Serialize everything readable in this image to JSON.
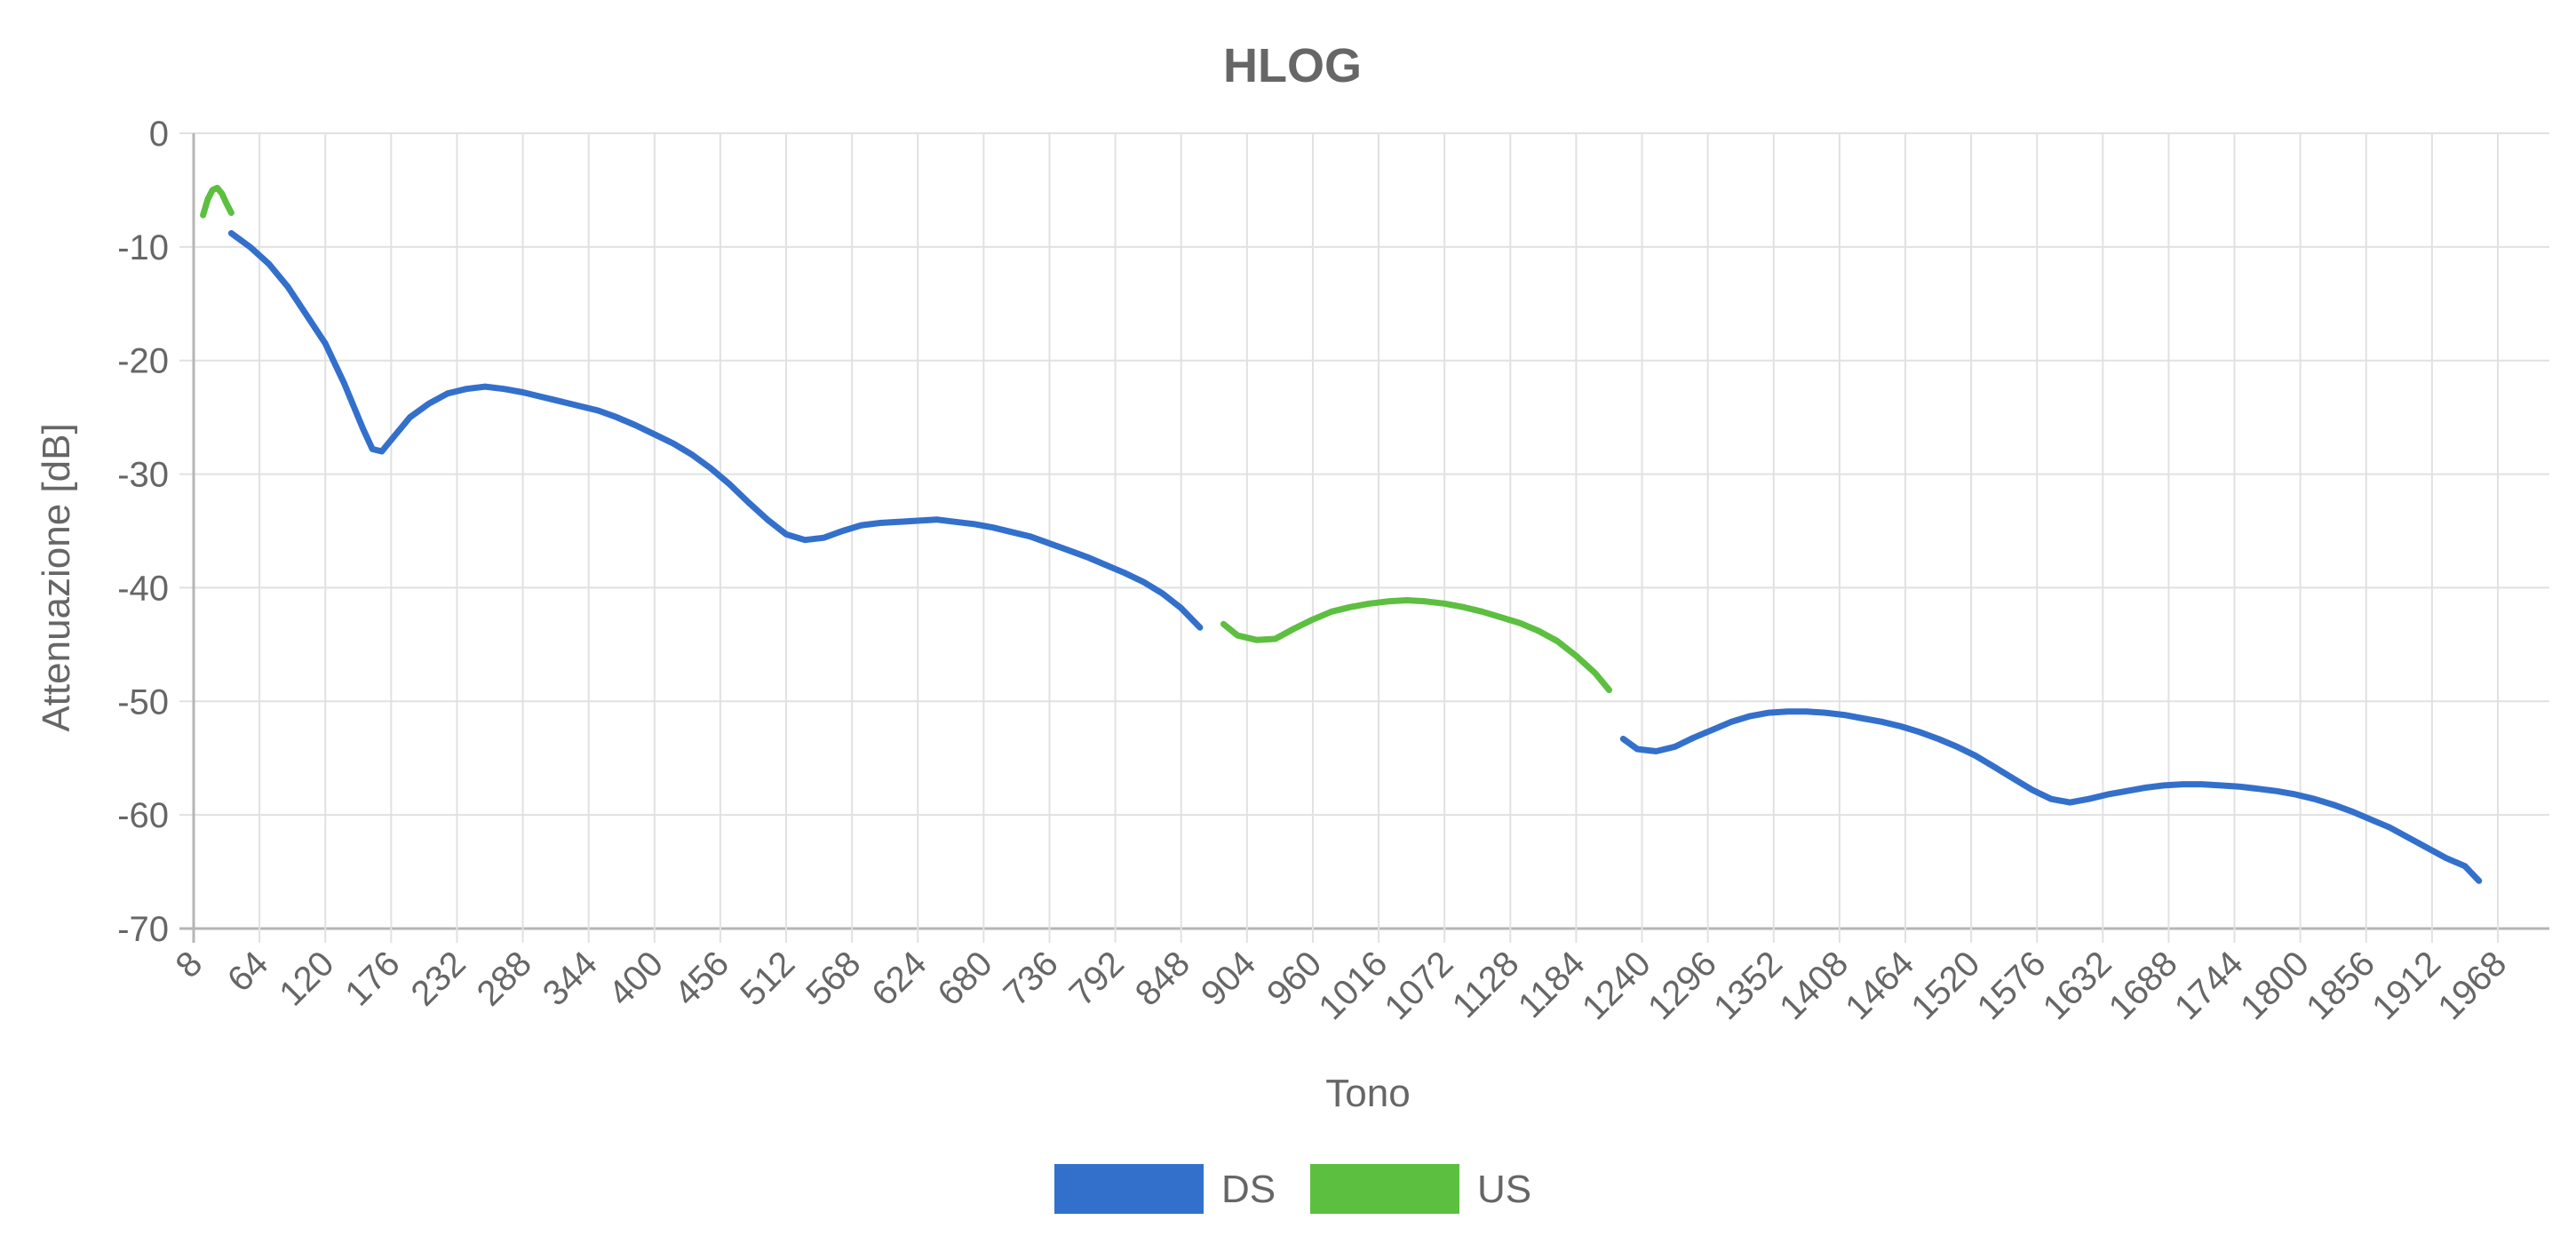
{
  "chart_data": {
    "type": "line",
    "title": "HLOG",
    "xlabel": "Tono",
    "ylabel": "Attenuazione [dB]",
    "xlim": [
      8,
      1968
    ],
    "ylim": [
      -70,
      0
    ],
    "x_ticks": [
      8,
      64,
      120,
      176,
      232,
      288,
      344,
      400,
      456,
      512,
      568,
      624,
      680,
      736,
      792,
      848,
      904,
      960,
      1016,
      1072,
      1128,
      1184,
      1240,
      1296,
      1352,
      1408,
      1464,
      1520,
      1576,
      1632,
      1688,
      1744,
      1800,
      1856,
      1912,
      1968
    ],
    "y_ticks": [
      0,
      -10,
      -20,
      -30,
      -40,
      -50,
      -60,
      -70
    ],
    "grid": true,
    "legend_position": "bottom-center",
    "series": [
      {
        "name": "DS",
        "color": "#3370cc",
        "segments": [
          [
            [
              40,
              -8.8
            ],
            [
              56,
              -10
            ],
            [
              72,
              -11.5
            ],
            [
              88,
              -13.5
            ],
            [
              104,
              -16
            ],
            [
              120,
              -18.5
            ],
            [
              136,
              -22
            ],
            [
              152,
              -26
            ],
            [
              160,
              -27.8
            ],
            [
              168,
              -28
            ],
            [
              176,
              -27
            ],
            [
              192,
              -25
            ],
            [
              208,
              -23.8
            ],
            [
              224,
              -22.9
            ],
            [
              240,
              -22.5
            ],
            [
              256,
              -22.3
            ],
            [
              272,
              -22.5
            ],
            [
              288,
              -22.8
            ],
            [
              304,
              -23.2
            ],
            [
              320,
              -23.6
            ],
            [
              336,
              -24
            ],
            [
              352,
              -24.4
            ],
            [
              368,
              -25
            ],
            [
              384,
              -25.7
            ],
            [
              400,
              -26.5
            ],
            [
              416,
              -27.3
            ],
            [
              432,
              -28.3
            ],
            [
              448,
              -29.5
            ],
            [
              464,
              -30.9
            ],
            [
              480,
              -32.5
            ],
            [
              496,
              -34
            ],
            [
              512,
              -35.3
            ],
            [
              528,
              -35.8
            ],
            [
              544,
              -35.6
            ],
            [
              560,
              -35
            ],
            [
              576,
              -34.5
            ],
            [
              592,
              -34.3
            ],
            [
              608,
              -34.2
            ],
            [
              624,
              -34.1
            ],
            [
              640,
              -34
            ],
            [
              656,
              -34.2
            ],
            [
              672,
              -34.4
            ],
            [
              688,
              -34.7
            ],
            [
              704,
              -35.1
            ],
            [
              720,
              -35.5
            ],
            [
              736,
              -36.1
            ],
            [
              752,
              -36.7
            ],
            [
              768,
              -37.3
            ],
            [
              784,
              -38
            ],
            [
              800,
              -38.7
            ],
            [
              816,
              -39.5
            ],
            [
              832,
              -40.5
            ],
            [
              848,
              -41.8
            ],
            [
              864,
              -43.5
            ]
          ],
          [
            [
              1224,
              -53.3
            ],
            [
              1236,
              -54.2
            ],
            [
              1252,
              -54.4
            ],
            [
              1268,
              -54
            ],
            [
              1284,
              -53.2
            ],
            [
              1300,
              -52.5
            ],
            [
              1316,
              -51.8
            ],
            [
              1332,
              -51.3
            ],
            [
              1348,
              -51
            ],
            [
              1364,
              -50.9
            ],
            [
              1380,
              -50.9
            ],
            [
              1396,
              -51
            ],
            [
              1412,
              -51.2
            ],
            [
              1428,
              -51.5
            ],
            [
              1444,
              -51.8
            ],
            [
              1460,
              -52.2
            ],
            [
              1476,
              -52.7
            ],
            [
              1492,
              -53.3
            ],
            [
              1508,
              -54
            ],
            [
              1524,
              -54.8
            ],
            [
              1540,
              -55.8
            ],
            [
              1556,
              -56.8
            ],
            [
              1572,
              -57.8
            ],
            [
              1588,
              -58.6
            ],
            [
              1604,
              -58.9
            ],
            [
              1620,
              -58.6
            ],
            [
              1636,
              -58.2
            ],
            [
              1652,
              -57.9
            ],
            [
              1668,
              -57.6
            ],
            [
              1684,
              -57.4
            ],
            [
              1700,
              -57.3
            ],
            [
              1716,
              -57.3
            ],
            [
              1732,
              -57.4
            ],
            [
              1748,
              -57.5
            ],
            [
              1764,
              -57.7
            ],
            [
              1780,
              -57.9
            ],
            [
              1796,
              -58.2
            ],
            [
              1812,
              -58.6
            ],
            [
              1828,
              -59.1
            ],
            [
              1844,
              -59.7
            ],
            [
              1860,
              -60.4
            ],
            [
              1876,
              -61.1
            ],
            [
              1892,
              -62
            ],
            [
              1908,
              -62.9
            ],
            [
              1924,
              -63.8
            ],
            [
              1940,
              -64.5
            ],
            [
              1952,
              -65.8
            ]
          ]
        ]
      },
      {
        "name": "US",
        "color": "#5cbf40",
        "segments": [
          [
            [
              16,
              -7.2
            ],
            [
              20,
              -5.8
            ],
            [
              24,
              -5
            ],
            [
              28,
              -4.8
            ],
            [
              32,
              -5.3
            ],
            [
              36,
              -6.2
            ],
            [
              40,
              -7
            ]
          ],
          [
            [
              884,
              -43.2
            ],
            [
              896,
              -44.2
            ],
            [
              912,
              -44.6
            ],
            [
              928,
              -44.5
            ],
            [
              944,
              -43.6
            ],
            [
              960,
              -42.8
            ],
            [
              976,
              -42.1
            ],
            [
              992,
              -41.7
            ],
            [
              1008,
              -41.4
            ],
            [
              1024,
              -41.2
            ],
            [
              1040,
              -41.1
            ],
            [
              1056,
              -41.2
            ],
            [
              1072,
              -41.4
            ],
            [
              1088,
              -41.7
            ],
            [
              1104,
              -42.1
            ],
            [
              1120,
              -42.6
            ],
            [
              1136,
              -43.1
            ],
            [
              1152,
              -43.8
            ],
            [
              1168,
              -44.7
            ],
            [
              1184,
              -46
            ],
            [
              1200,
              -47.5
            ],
            [
              1212,
              -49
            ]
          ]
        ]
      }
    ]
  }
}
